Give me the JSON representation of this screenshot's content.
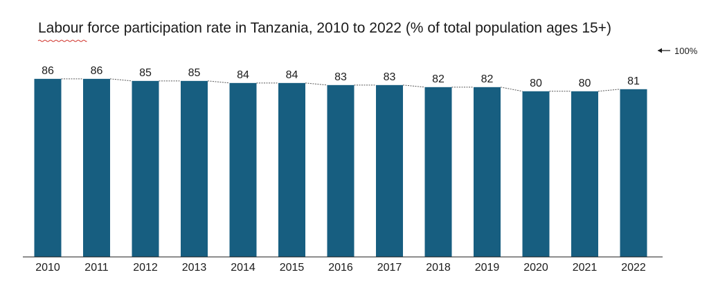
{
  "chart_data": {
    "type": "bar",
    "title": "Labour force participation rate in Tanzania, 2010 to 2022 (% of total population ages 15+)",
    "xlabel": "",
    "ylabel": "",
    "ylim": [
      0,
      100
    ],
    "max_marker_label": "100%",
    "categories": [
      "2010",
      "2011",
      "2012",
      "2013",
      "2014",
      "2015",
      "2016",
      "2017",
      "2018",
      "2019",
      "2020",
      "2021",
      "2022"
    ],
    "values": [
      86,
      86,
      85,
      85,
      84,
      84,
      83,
      83,
      82,
      82,
      80,
      80,
      81
    ],
    "bar_color": "#175e80",
    "connector_color": "#555555",
    "grid": false,
    "legend": "none"
  }
}
